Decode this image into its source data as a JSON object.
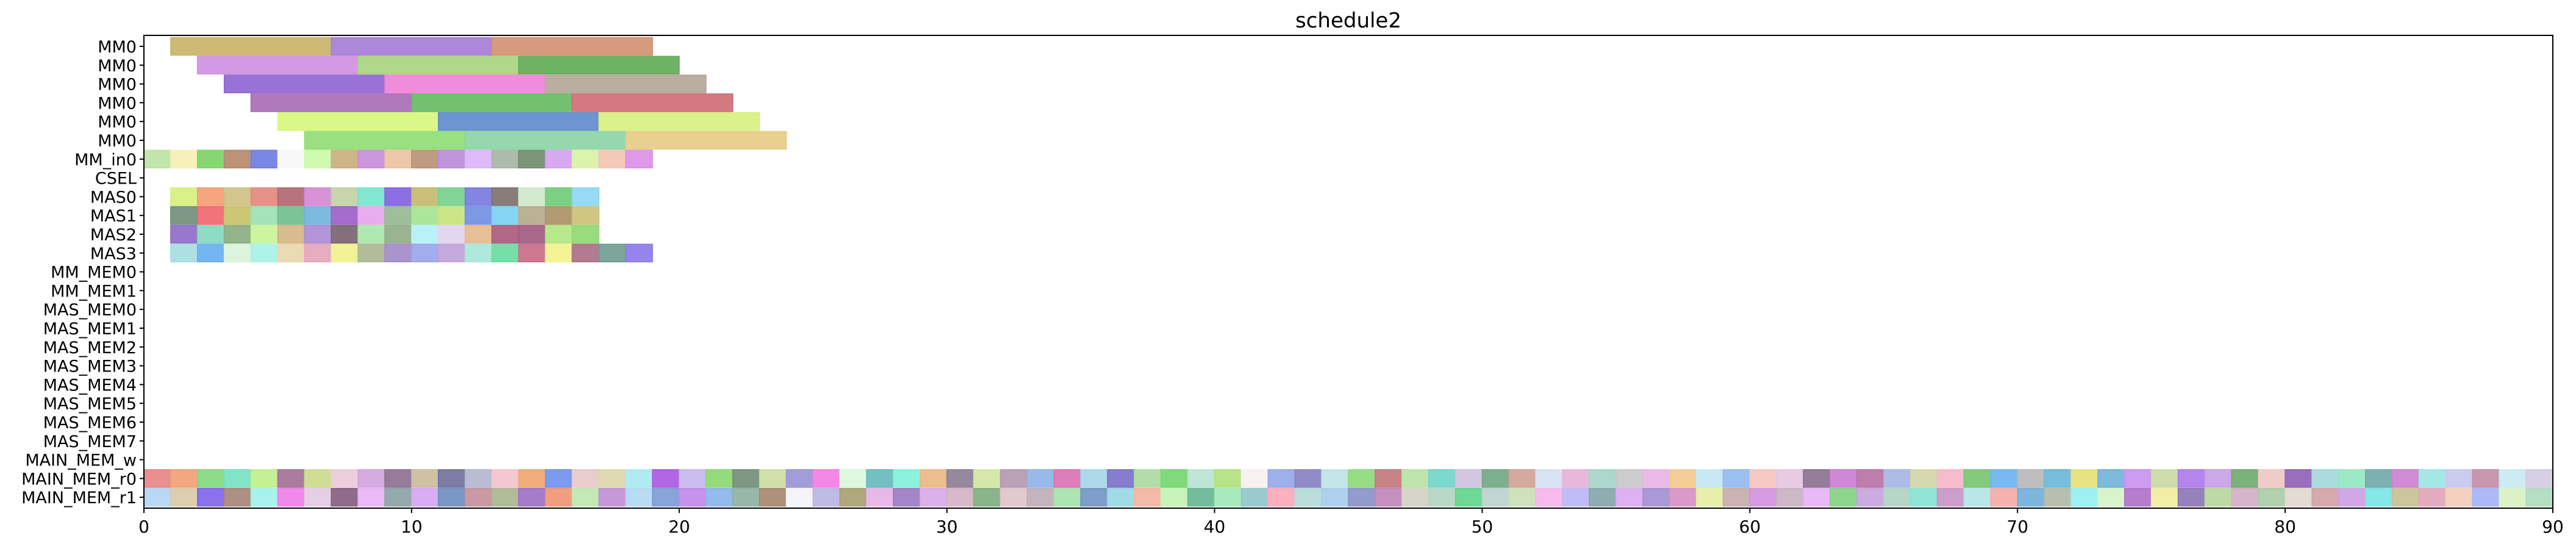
{
  "chart_data": {
    "type": "gantt",
    "title": "schedule2",
    "xlabel": "",
    "ylabel": "",
    "xlim": [
      0,
      90
    ],
    "xticks": [
      0,
      10,
      20,
      30,
      40,
      50,
      60,
      70,
      80,
      90
    ],
    "grid": false,
    "rows": [
      "MM0",
      "MM0",
      "MM0",
      "MM0",
      "MM0",
      "MM0",
      "MM_in0",
      "CSEL",
      "MAS0",
      "MAS1",
      "MAS2",
      "MAS3",
      "MM_MEM0",
      "MM_MEM1",
      "MAS_MEM0",
      "MAS_MEM1",
      "MAS_MEM2",
      "MAS_MEM3",
      "MAS_MEM4",
      "MAS_MEM5",
      "MAS_MEM6",
      "MAS_MEM7",
      "MAIN_MEM_w",
      "MAIN_MEM_r0",
      "MAIN_MEM_r1"
    ],
    "tasks": [
      {
        "row": 0,
        "start": 1,
        "end": 7,
        "color": "#c9b266"
      },
      {
        "row": 0,
        "start": 7,
        "end": 13,
        "color": "#a57ad6"
      },
      {
        "row": 0,
        "start": 13,
        "end": 19,
        "color": "#d28f6e"
      },
      {
        "row": 1,
        "start": 2,
        "end": 8,
        "color": "#cf8ee0"
      },
      {
        "row": 1,
        "start": 8,
        "end": 14,
        "color": "#a8d37c"
      },
      {
        "row": 1,
        "start": 14,
        "end": 20,
        "color": "#5faa55"
      },
      {
        "row": 2,
        "start": 3,
        "end": 9,
        "color": "#8e63d3"
      },
      {
        "row": 2,
        "start": 9,
        "end": 15,
        "color": "#f07fd6"
      },
      {
        "row": 2,
        "start": 15,
        "end": 21,
        "color": "#b2a596"
      },
      {
        "row": 3,
        "start": 4,
        "end": 10,
        "color": "#a76ab5"
      },
      {
        "row": 3,
        "start": 10,
        "end": 16,
        "color": "#62ba62"
      },
      {
        "row": 3,
        "start": 16,
        "end": 22,
        "color": "#cf6a72"
      },
      {
        "row": 4,
        "start": 5,
        "end": 11,
        "color": "#d6f77a"
      },
      {
        "row": 4,
        "start": 11,
        "end": 17,
        "color": "#5d8acb"
      },
      {
        "row": 4,
        "start": 17,
        "end": 23,
        "color": "#d7f07f"
      },
      {
        "row": 5,
        "start": 6,
        "end": 12,
        "color": "#8fdc72"
      },
      {
        "row": 5,
        "start": 12,
        "end": 18,
        "color": "#8ad4a4"
      },
      {
        "row": 5,
        "start": 18,
        "end": 24,
        "color": "#e7cb82"
      }
    ],
    "unit_rows": [
      {
        "row": 6,
        "start": 0,
        "colors": [
          "#b9e3a3",
          "#f5f0b2",
          "#78d35f",
          "#b5866a",
          "#6c7be0",
          "#f7f7f7",
          "#cbf9a6",
          "#c9ad7a",
          "#c78bd9",
          "#ecc19e",
          "#b89073",
          "#b98ad8",
          "#dcb2f7",
          "#a5b3a3",
          "#6e8a6b",
          "#d49ff2",
          "#d8f2a5",
          "#f4c3b3",
          "#da8fe6"
        ]
      },
      {
        "row": 8,
        "start": 1,
        "colors": [
          "#d5ef7a",
          "#f49b72",
          "#cfbf82",
          "#e2877b",
          "#b0656f",
          "#d487d4",
          "#c1d0a3",
          "#76e3cc",
          "#8060e0",
          "#c3b86a",
          "#73cf8b",
          "#7678e0",
          "#7b6f6b",
          "#cfe8cb",
          "#6ecb74",
          "#8bd6f2"
        ]
      },
      {
        "row": 9,
        "start": 1,
        "colors": [
          "#6f8d79",
          "#f0656c",
          "#c7c166",
          "#9be0b3",
          "#6dbd8d",
          "#6fb2d9",
          "#9c5cc8",
          "#e7a4ec",
          "#94b88f",
          "#a4e38f",
          "#c6e37a",
          "#6f8ee3",
          "#79cff2",
          "#b5a98a",
          "#ab8f64",
          "#cdbf74"
        ]
      },
      {
        "row": 10,
        "start": 1,
        "colors": [
          "#8c69c6",
          "#84d7bd",
          "#86ab7e",
          "#c8f495",
          "#d4b482",
          "#aa88d5",
          "#76606d",
          "#a9e6a9",
          "#8fab84",
          "#b3f0f7",
          "#e0d3ec",
          "#e5b88a",
          "#a8587a",
          "#a0587f",
          "#aee77f",
          "#8ed872"
        ]
      },
      {
        "row": 11,
        "start": 1,
        "colors": [
          "#a5dde0",
          "#66aeef",
          "#daf2da",
          "#a4f2e6",
          "#e9d7ad",
          "#e4a3b9",
          "#eef28a",
          "#aab48f",
          "#a188c8",
          "#97a4ea",
          "#c0a0d8",
          "#a6e6d8",
          "#67dc9f",
          "#c86a85",
          "#f3f28a",
          "#aa6d83",
          "#6f9b8e",
          "#8a77ec"
        ]
      },
      {
        "row": 23,
        "start": 0,
        "colors": [
          "#e78383",
          "#ef9f73",
          "#7fd77c",
          "#74e0c1",
          "#c0ee88",
          "#a26e92",
          "#ccd98a",
          "#ebcad7",
          "#d0a2dd",
          "#8d6d8f",
          "#c9ba9a",
          "#6e6e9a",
          "#b2b5d1",
          "#f3c2cc",
          "#f0a56d",
          "#6f8ff0",
          "#e8c6c6",
          "#dcd6a9",
          "#a7e8f2",
          "#a956e0",
          "#c4b5ec",
          "#88d86d",
          "#6f8c75",
          "#cadda0",
          "#9792d6",
          "#f47be4",
          "#d8f7dc",
          "#63b9ba",
          "#7ef2d8",
          "#eab77e",
          "#8b7c92",
          "#d2e6a0",
          "#b596ad",
          "#8db2e8",
          "#d96fb2",
          "#a3d6ea",
          "#7a6ec8",
          "#aad9a0",
          "#72d66a",
          "#b7e2d2",
          "#b0e07a",
          "#f6f0f0",
          "#92a7e8",
          "#867ec3",
          "#bee2e6",
          "#8bd877",
          "#c17579",
          "#b7e0a3",
          "#6fd4c8",
          "#cec0e0",
          "#6fa683",
          "#d1a094",
          "#d4e0f3",
          "#e4b0d8",
          "#a3d3c7",
          "#c6c6c6",
          "#e8b2e6",
          "#f2c88a",
          "#c2e7f2",
          "#91b8f0",
          "#f4c2ba",
          "#e6c4e0",
          "#8a6e8e",
          "#cc7ad3",
          "#b76fa1",
          "#a3b4e6",
          "#d2d4a4",
          "#f5b5c5",
          "#76c46e",
          "#67b3f0",
          "#b8b6b8",
          "#67b7d5",
          "#e3e078",
          "#6eb1d6",
          "#c890f0",
          "#c9d8a3",
          "#ad77ea",
          "#c79ee6",
          "#6fa96b",
          "#eec7c0",
          "#8e5fb6",
          "#a1d7db",
          "#91e7c0",
          "#6fa8a8",
          "#ca7fcf",
          "#9be3e3",
          "#c4c6ed",
          "#c38ca4",
          "#c7e9f1",
          "#d2cae2"
        ]
      },
      {
        "row": 24,
        "start": 0,
        "colors": [
          "#b2d4f2",
          "#d8c9a6",
          "#7f63e8",
          "#a58376",
          "#a1f0ea",
          "#f07ce7",
          "#e1cae3",
          "#845b7f",
          "#e7b2f4",
          "#8aa1a3",
          "#d4a4f2",
          "#6c8dbd",
          "#c28f9a",
          "#a9b58e",
          "#9c6ec2",
          "#ef9372",
          "#bce7ad",
          "#c18dd4",
          "#b0d8f2",
          "#7b9ad4",
          "#bf86ea",
          "#8bb2ea",
          "#8cb09e",
          "#a5856c",
          "#f4f4f8",
          "#b8b4e0",
          "#a49f6f",
          "#e6b1e5",
          "#9a79c0",
          "#d6a8e6",
          "#d3b1c3",
          "#7dad7c",
          "#dfc3c9",
          "#bcacb6",
          "#a3e2a9",
          "#6f94c2",
          "#97d7e2",
          "#f2b39e",
          "#c2f3b4",
          "#64b693",
          "#a0e7b7",
          "#8fc4c9",
          "#fca6b6",
          "#b3d9d8",
          "#a6cbed",
          "#8790c8",
          "#be84b9",
          "#d0d1c2",
          "#b3d4c1",
          "#5fd488",
          "#b8d2ce",
          "#cbdfb6",
          "#f5b2ea",
          "#b8b6f2",
          "#83a3a8",
          "#dca8f2",
          "#a08fd2",
          "#d48fc3",
          "#e3eea2",
          "#c6aaaa",
          "#d390e1",
          "#c6b0c0",
          "#e4b2f5",
          "#82cf7e",
          "#c5a3dd",
          "#b0d0c3",
          "#86e2d1",
          "#c794c7",
          "#b2e3e6",
          "#f4a9a5",
          "#6eaed8",
          "#b1b8a5",
          "#94eeef",
          "#d3f3c6",
          "#ad6fc6",
          "#f1ec9b",
          "#8b74b3",
          "#b6d59c",
          "#d2acc3",
          "#a8cba5",
          "#e1d7cc",
          "#d1a0a4",
          "#cc9fe2",
          "#7ae3e4",
          "#c6c093",
          "#e0a3b7",
          "#f2ccb7",
          "#a2b2f6",
          "#d7f1c0",
          "#acdbbb"
        ]
      }
    ]
  }
}
